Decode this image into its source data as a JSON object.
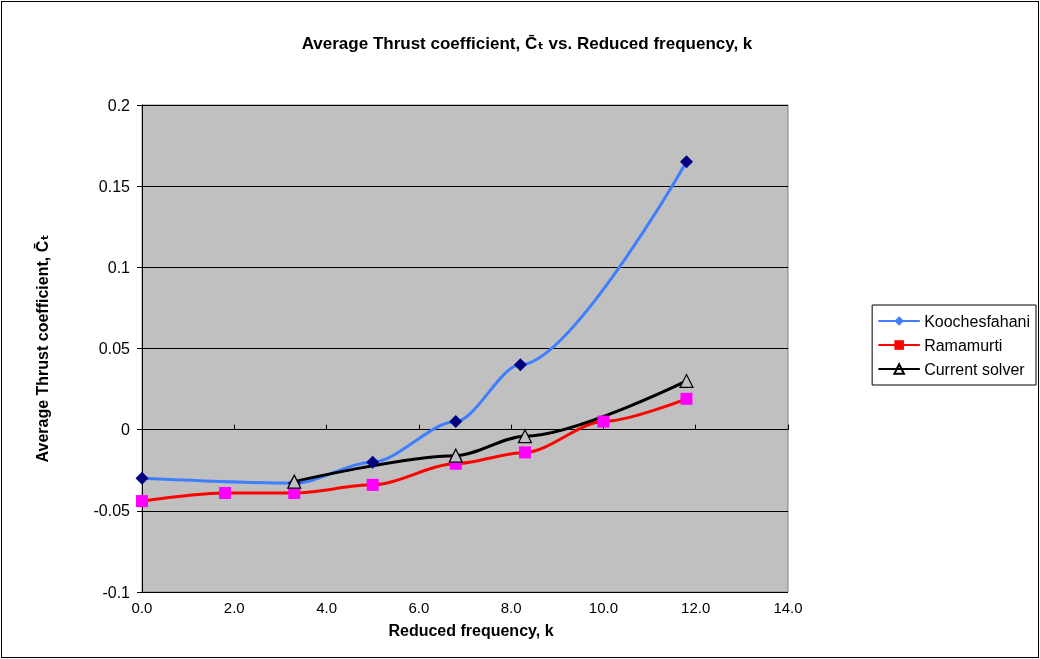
{
  "chart_data": {
    "type": "line",
    "title": "Average Thrust coefficient, C̄ₜ vs. Reduced frequency, k",
    "xlabel": "Reduced frequency, k",
    "ylabel": "Average Thrust coefficient, C̄ₜ",
    "xlim": [
      0,
      14
    ],
    "xticks": [
      {
        "value": 0,
        "label": "0.0"
      },
      {
        "value": 2,
        "label": "2.0"
      },
      {
        "value": 4,
        "label": "4.0"
      },
      {
        "value": 6,
        "label": "6.0"
      },
      {
        "value": 8,
        "label": "8.0"
      },
      {
        "value": 10,
        "label": "10.0"
      },
      {
        "value": 12,
        "label": "12.0"
      },
      {
        "value": 14,
        "label": "14.0"
      }
    ],
    "ylim": [
      -0.1,
      0.2
    ],
    "yticks": [
      -0.1,
      -0.05,
      0,
      0.05,
      0.1,
      0.15,
      0.2
    ],
    "grid": "y",
    "legend": "right",
    "series": [
      {
        "name": "Koochesfahani",
        "color": "#3f7fff",
        "colors": [
          "#000080",
          "#000080",
          "#000080",
          "#000080",
          "#000080",
          "#000080"
        ],
        "marker": "diamond",
        "x": [
          0,
          3.3,
          5.0,
          6.8,
          8.2,
          11.8
        ],
        "values": [
          -0.03,
          -0.033,
          -0.02,
          0.005,
          0.04,
          0.165
        ]
      },
      {
        "name": "Ramamurti",
        "color": "#ff0000",
        "colors": [
          "#ff00ff",
          "#ff00ff",
          "#ff00ff",
          "#ff00ff",
          "#ff00ff",
          "#ff00ff",
          "#ff00ff",
          "#ff00ff"
        ],
        "marker": "square",
        "x": [
          0,
          1.8,
          3.3,
          5.0,
          6.8,
          8.3,
          10.0,
          11.8
        ],
        "values": [
          -0.044,
          -0.039,
          -0.039,
          -0.034,
          -0.021,
          -0.014,
          0.005,
          0.019
        ]
      },
      {
        "name": "Current solver",
        "color": "#000000",
        "colors": [
          "#000000",
          "#000000",
          "#000000",
          "#000000"
        ],
        "marker": "triangle",
        "x": [
          3.3,
          6.8,
          8.3,
          11.8
        ],
        "values": [
          -0.032,
          -0.016,
          -0.004,
          0.03
        ]
      }
    ]
  }
}
